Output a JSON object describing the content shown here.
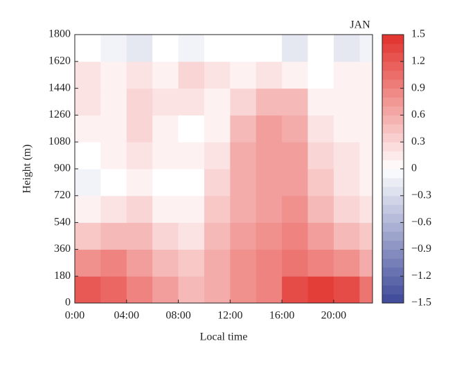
{
  "chart_data": {
    "type": "contour",
    "title": "JAN",
    "x_label": "Local time",
    "y_label": "Height (m)",
    "x": [
      0,
      2,
      4,
      6,
      8,
      10,
      12,
      14,
      16,
      18,
      20,
      22
    ],
    "y": [
      0,
      180,
      360,
      540,
      720,
      900,
      1080,
      1260,
      1440,
      1620
    ],
    "z": [
      [
        1.2,
        1.1,
        0.9,
        0.7,
        0.5,
        0.6,
        0.8,
        0.9,
        1.3,
        1.4,
        1.3,
        1.0
      ],
      [
        0.8,
        0.9,
        0.7,
        0.5,
        0.4,
        0.6,
        0.8,
        0.9,
        1.0,
        0.9,
        0.8,
        0.6
      ],
      [
        0.4,
        0.5,
        0.5,
        0.3,
        0.2,
        0.5,
        0.7,
        0.8,
        0.9,
        0.7,
        0.5,
        0.4
      ],
      [
        0.1,
        0.2,
        0.3,
        0.1,
        0.1,
        0.4,
        0.6,
        0.7,
        0.8,
        0.5,
        0.3,
        0.2
      ],
      [
        -0.1,
        0.0,
        0.1,
        0.0,
        0.0,
        0.3,
        0.6,
        0.7,
        0.7,
        0.4,
        0.2,
        0.1
      ],
      [
        0.0,
        0.1,
        0.2,
        0.1,
        0.1,
        0.2,
        0.6,
        0.7,
        0.7,
        0.3,
        0.2,
        0.1
      ],
      [
        0.1,
        0.1,
        0.3,
        0.1,
        0.0,
        0.1,
        0.5,
        0.7,
        0.6,
        0.2,
        0.1,
        0.1
      ],
      [
        0.2,
        0.1,
        0.3,
        0.2,
        0.2,
        0.1,
        0.3,
        0.5,
        0.5,
        0.1,
        0.1,
        0.1
      ],
      [
        0.2,
        0.1,
        0.2,
        0.1,
        0.3,
        0.2,
        0.1,
        0.2,
        0.1,
        0.0,
        0.1,
        0.1
      ],
      [
        0.0,
        -0.1,
        -0.2,
        0.0,
        -0.1,
        0.0,
        0.0,
        0.0,
        -0.2,
        0.0,
        -0.2,
        -0.1
      ]
    ],
    "xlim": [
      0,
      23
    ],
    "ylim": [
      0,
      1800
    ],
    "xticks": [
      {
        "value": 0,
        "label": "0:00"
      },
      {
        "value": 4,
        "label": "04:00"
      },
      {
        "value": 8,
        "label": "08:00"
      },
      {
        "value": 12,
        "label": "12:00"
      },
      {
        "value": 16,
        "label": "16:00"
      },
      {
        "value": 20,
        "label": "20:00"
      }
    ],
    "yticks": [
      0,
      180,
      360,
      540,
      720,
      900,
      1080,
      1260,
      1440,
      1620,
      1800
    ],
    "clim": [
      -1.5,
      1.5
    ],
    "cticks": [
      {
        "value": -1.5,
        "label": "−1.5"
      },
      {
        "value": -1.2,
        "label": "−1.2"
      },
      {
        "value": -0.9,
        "label": "−0.9"
      },
      {
        "value": -0.6,
        "label": "−0.6"
      },
      {
        "value": -0.3,
        "label": "−0.3"
      },
      0,
      0.3,
      0.6,
      0.9,
      1.2,
      1.5
    ],
    "low_color": "#3b4899",
    "high_color": "#e2302b"
  }
}
